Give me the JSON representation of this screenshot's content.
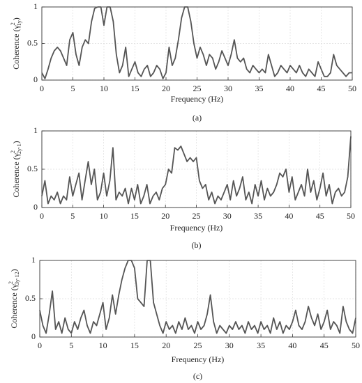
{
  "chart_data": [
    {
      "type": "line",
      "xlabel": "Frequency (Hz)",
      "caption": "(a)",
      "ylabel": {
        "text": "Coherence (γ",
        "sup": "2",
        "sub": "1y",
        "end": ")"
      },
      "xlim": [
        0,
        50
      ],
      "ylim": [
        0,
        1
      ],
      "xticks": [
        0,
        5,
        10,
        15,
        20,
        25,
        30,
        35,
        40,
        45,
        50
      ],
      "yticks": [
        0,
        0.5,
        1
      ],
      "grid": true,
      "x": [
        0,
        0.5,
        1,
        1.5,
        2,
        2.5,
        3,
        3.5,
        4,
        4.5,
        5,
        5.5,
        6,
        6.5,
        7,
        7.5,
        8,
        8.5,
        9,
        9.5,
        10,
        10.5,
        11,
        11.5,
        12,
        12.5,
        13,
        13.5,
        14,
        14.5,
        15,
        15.5,
        16,
        16.5,
        17,
        17.5,
        18,
        18.5,
        19,
        19.5,
        20,
        20.5,
        21,
        21.5,
        22,
        22.5,
        23,
        23.5,
        24,
        24.5,
        25,
        25.5,
        26,
        26.5,
        27,
        27.5,
        28,
        28.5,
        29,
        29.5,
        30,
        30.5,
        31,
        31.5,
        32,
        32.5,
        33,
        33.5,
        34,
        34.5,
        35,
        35.5,
        36,
        36.5,
        37,
        37.5,
        38,
        38.5,
        39,
        39.5,
        40,
        40.5,
        41,
        41.5,
        42,
        42.5,
        43,
        43.5,
        44,
        44.5,
        45,
        45.5,
        46,
        46.5,
        47,
        47.5,
        48,
        48.5,
        49,
        49.5,
        50
      ],
      "color": "#555555",
      "values": [
        0.1,
        0.02,
        0.15,
        0.3,
        0.4,
        0.45,
        0.4,
        0.3,
        0.2,
        0.55,
        0.65,
        0.35,
        0.2,
        0.45,
        0.55,
        0.5,
        0.8,
        0.98,
        1,
        1,
        0.75,
        1,
        1,
        0.8,
        0.35,
        0.1,
        0.2,
        0.45,
        0.05,
        0.15,
        0.25,
        0.1,
        0.05,
        0.15,
        0.2,
        0.05,
        0.1,
        0.2,
        0.15,
        0.02,
        0.1,
        0.45,
        0.2,
        0.3,
        0.55,
        0.85,
        1,
        1,
        0.8,
        0.5,
        0.3,
        0.45,
        0.35,
        0.2,
        0.35,
        0.3,
        0.15,
        0.25,
        0.4,
        0.3,
        0.2,
        0.35,
        0.55,
        0.3,
        0.25,
        0.3,
        0.15,
        0.1,
        0.2,
        0.15,
        0.1,
        0.15,
        0.1,
        0.35,
        0.2,
        0.05,
        0.1,
        0.2,
        0.15,
        0.1,
        0.2,
        0.15,
        0.1,
        0.2,
        0.1,
        0.05,
        0.15,
        0.1,
        0.05,
        0.25,
        0.15,
        0.05,
        0.05,
        0.1,
        0.35,
        0.2,
        0.15,
        0.1,
        0.05,
        0.1,
        0.1
      ]
    },
    {
      "type": "line",
      "xlabel": "Frequency (Hz)",
      "caption": "(b)",
      "ylabel": {
        "text": "Coherence (γ",
        "sup": "2",
        "sub": "2y·1",
        "end": ")"
      },
      "xlim": [
        0,
        50
      ],
      "ylim": [
        0,
        1
      ],
      "xticks": [
        0,
        5,
        10,
        15,
        20,
        25,
        30,
        35,
        40,
        45,
        50
      ],
      "yticks": [
        0,
        0.5,
        1
      ],
      "grid": true,
      "x": [
        0,
        0.5,
        1,
        1.5,
        2,
        2.5,
        3,
        3.5,
        4,
        4.5,
        5,
        5.5,
        6,
        6.5,
        7,
        7.5,
        8,
        8.5,
        9,
        9.5,
        10,
        10.5,
        11,
        11.5,
        12,
        12.5,
        13,
        13.5,
        14,
        14.5,
        15,
        15.5,
        16,
        16.5,
        17,
        17.5,
        18,
        18.5,
        19,
        19.5,
        20,
        20.5,
        21,
        21.5,
        22,
        22.5,
        23,
        23.5,
        24,
        24.5,
        25,
        25.5,
        26,
        26.5,
        27,
        27.5,
        28,
        28.5,
        29,
        29.5,
        30,
        30.5,
        31,
        31.5,
        32,
        32.5,
        33,
        33.5,
        34,
        34.5,
        35,
        35.5,
        36,
        36.5,
        37,
        37.5,
        38,
        38.5,
        39,
        39.5,
        40,
        40.5,
        41,
        41.5,
        42,
        42.5,
        43,
        43.5,
        44,
        44.5,
        45,
        45.5,
        46,
        46.5,
        47,
        47.5,
        48,
        48.5,
        49,
        49.5,
        50
      ],
      "color": "#555555",
      "values": [
        0.15,
        0.35,
        0.05,
        0.15,
        0.1,
        0.2,
        0.05,
        0.15,
        0.1,
        0.4,
        0.15,
        0.3,
        0.45,
        0.1,
        0.35,
        0.6,
        0.3,
        0.5,
        0.1,
        0.2,
        0.45,
        0.15,
        0.35,
        0.78,
        0.1,
        0.2,
        0.15,
        0.25,
        0.05,
        0.25,
        0.1,
        0.3,
        0.05,
        0.15,
        0.3,
        0.05,
        0.15,
        0.2,
        0.1,
        0.25,
        0.3,
        0.5,
        0.45,
        0.78,
        0.75,
        0.8,
        0.7,
        0.6,
        0.65,
        0.6,
        0.65,
        0.35,
        0.25,
        0.3,
        0.1,
        0.2,
        0.05,
        0.15,
        0.1,
        0.2,
        0.3,
        0.1,
        0.35,
        0.15,
        0.25,
        0.4,
        0.1,
        0.2,
        0.05,
        0.3,
        0.15,
        0.35,
        0.1,
        0.25,
        0.15,
        0.2,
        0.3,
        0.45,
        0.4,
        0.5,
        0.2,
        0.4,
        0.1,
        0.2,
        0.3,
        0.15,
        0.5,
        0.2,
        0.35,
        0.1,
        0.25,
        0.45,
        0.15,
        0.3,
        0.05,
        0.2,
        0.25,
        0.15,
        0.2,
        0.4,
        0.93
      ]
    },
    {
      "type": "line",
      "xlabel": "Frequency (Hz)",
      "caption": "(c)",
      "ylabel": {
        "text": "Coherence (γ",
        "sup": "2",
        "sub": "3y·12",
        "end": ")"
      },
      "xlim": [
        0,
        50
      ],
      "ylim": [
        0,
        1
      ],
      "xticks": [
        0,
        5,
        10,
        15,
        20,
        25,
        30,
        35,
        40,
        45,
        50
      ],
      "yticks": [
        0,
        0.5,
        1
      ],
      "grid": true,
      "x": [
        0,
        0.5,
        1,
        1.5,
        2,
        2.5,
        3,
        3.5,
        4,
        4.5,
        5,
        5.5,
        6,
        6.5,
        7,
        7.5,
        8,
        8.5,
        9,
        9.5,
        10,
        10.5,
        11,
        11.5,
        12,
        12.5,
        13,
        13.5,
        14,
        14.5,
        15,
        15.5,
        16,
        16.5,
        17,
        17.5,
        18,
        18.5,
        19,
        19.5,
        20,
        20.5,
        21,
        21.5,
        22,
        22.5,
        23,
        23.5,
        24,
        24.5,
        25,
        25.5,
        26,
        26.5,
        27,
        27.5,
        28,
        28.5,
        29,
        29.5,
        30,
        30.5,
        31,
        31.5,
        32,
        32.5,
        33,
        33.5,
        34,
        34.5,
        35,
        35.5,
        36,
        36.5,
        37,
        37.5,
        38,
        38.5,
        39,
        39.5,
        40,
        40.5,
        41,
        41.5,
        42,
        42.5,
        43,
        43.5,
        44,
        44.5,
        45,
        45.5,
        46,
        46.5,
        47,
        47.5,
        48,
        48.5,
        49,
        49.5,
        50
      ],
      "color": "#555555",
      "values": [
        0.35,
        0.15,
        0.05,
        0.3,
        0.6,
        0.1,
        0.2,
        0.05,
        0.25,
        0.1,
        0.05,
        0.2,
        0.1,
        0.25,
        0.35,
        0.15,
        0.05,
        0.2,
        0.15,
        0.3,
        0.45,
        0.1,
        0.25,
        0.55,
        0.3,
        0.55,
        0.75,
        0.9,
        1,
        1,
        0.9,
        0.5,
        0.45,
        0.4,
        1,
        1,
        0.45,
        0.3,
        0.15,
        0.05,
        0.2,
        0.1,
        0.15,
        0.05,
        0.2,
        0.1,
        0.25,
        0.1,
        0.15,
        0.05,
        0.2,
        0.1,
        0.15,
        0.3,
        0.55,
        0.2,
        0.05,
        0.15,
        0.1,
        0.05,
        0.15,
        0.1,
        0.2,
        0.1,
        0.15,
        0.05,
        0.2,
        0.1,
        0.15,
        0.05,
        0.2,
        0.1,
        0.15,
        0.05,
        0.25,
        0.1,
        0.2,
        0.05,
        0.15,
        0.1,
        0.2,
        0.35,
        0.15,
        0.1,
        0.2,
        0.4,
        0.25,
        0.15,
        0.3,
        0.1,
        0.2,
        0.35,
        0.1,
        0.2,
        0.15,
        0.05,
        0.4,
        0.2,
        0.1,
        0.05,
        0.25
      ]
    }
  ]
}
